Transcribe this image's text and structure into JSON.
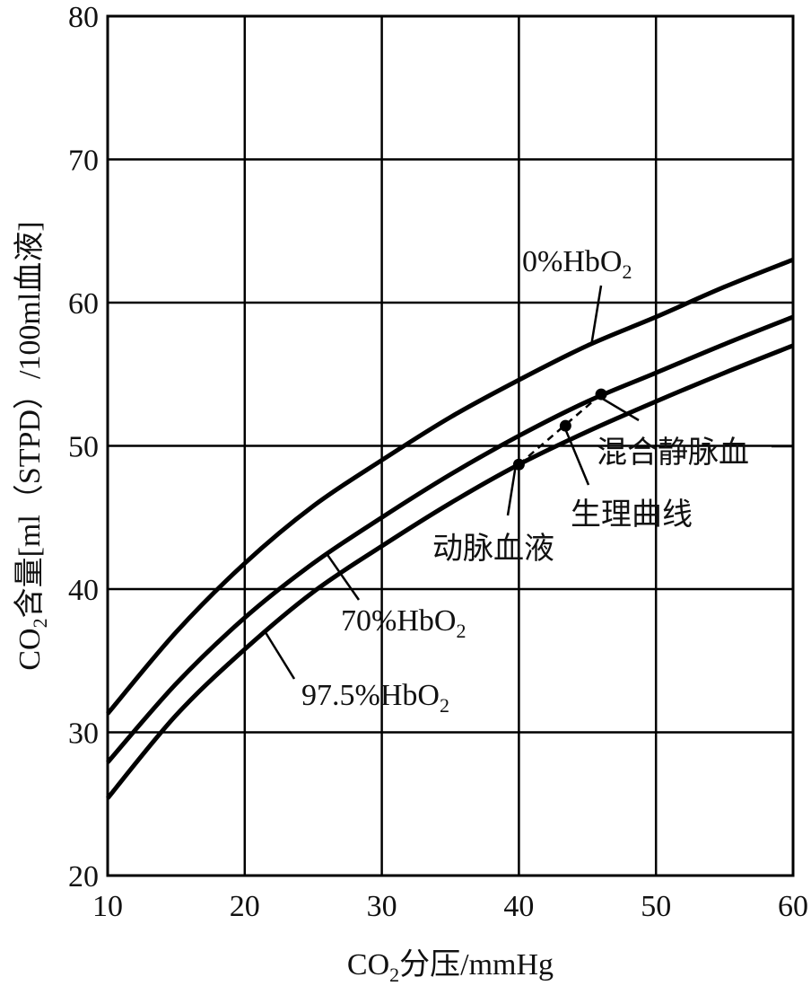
{
  "chart_data": {
    "type": "line",
    "title": "",
    "xlabel": "CO₂分压/mmHg",
    "ylabel": "CO₂含量[ml（STPD）/100ml血液]",
    "xlim": [
      10,
      60
    ],
    "ylim": [
      20,
      80
    ],
    "x_ticks": [
      10,
      20,
      30,
      40,
      50,
      60
    ],
    "y_ticks": [
      20,
      30,
      40,
      50,
      60,
      70,
      80
    ],
    "grid": true,
    "series": [
      {
        "name": "0%HbO₂",
        "x": [
          10,
          15,
          20,
          25,
          30,
          35,
          40,
          45,
          50,
          55,
          60
        ],
        "y": [
          31.3,
          37.0,
          41.8,
          45.8,
          49.0,
          52.0,
          54.6,
          57.0,
          59.0,
          61.1,
          63.0
        ]
      },
      {
        "name": "70%HbO₂",
        "x": [
          10,
          15,
          20,
          25,
          30,
          35,
          40,
          45,
          50,
          55,
          60
        ],
        "y": [
          27.9,
          33.4,
          38.0,
          41.8,
          45.0,
          48.0,
          50.7,
          53.1,
          55.1,
          57.1,
          59.0
        ]
      },
      {
        "name": "97.5%HbO₂",
        "x": [
          10,
          15,
          20,
          25,
          30,
          35,
          40,
          45,
          50,
          55,
          60
        ],
        "y": [
          25.4,
          31.2,
          35.8,
          39.8,
          43.0,
          46.0,
          48.7,
          51.0,
          53.1,
          55.1,
          57.0
        ]
      },
      {
        "name": "生理曲线",
        "style": "dashed",
        "x": [
          40,
          46
        ],
        "y": [
          48.7,
          53.6
        ]
      }
    ],
    "points": [
      {
        "label": "动脉血液",
        "x": 40.0,
        "y": 48.7
      },
      {
        "label": "生理曲线",
        "x": 43.4,
        "y": 51.4
      },
      {
        "label": "混合静脉血",
        "x": 46.0,
        "y": 53.6
      }
    ],
    "annotations": [
      {
        "name": "0%",
        "sub": "2",
        "base": "HbO",
        "target_series": 0,
        "target_x": 45.3
      },
      {
        "name": "70%",
        "sub": "2",
        "base": "HbO",
        "target_series": 1,
        "target_x": 26.0
      },
      {
        "name": "97.5%",
        "sub": "2",
        "base": "HbO",
        "target_series": 2,
        "target_x": 21.5
      }
    ],
    "axis_label_parts": {
      "x_prefix": "CO",
      "x_sub": "2",
      "x_suffix": "分压/mmHg",
      "y_prefix": "CO",
      "y_sub": "2",
      "y_suffix": "含量[ml（STPD）/100ml血液]"
    }
  }
}
